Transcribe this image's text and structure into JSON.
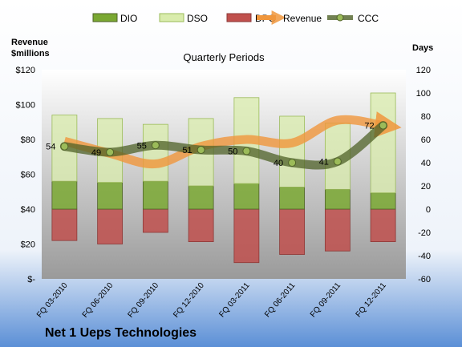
{
  "company": "Net 1 Ueps Technologies",
  "chart_data": {
    "type": "bar",
    "title": "Quarterly Periods",
    "left_axis_label_line1": "Revenue",
    "left_axis_label_line2": "$millions",
    "right_axis_label": "Days",
    "categories": [
      "FQ 03-2010",
      "FQ 06-2010",
      "FQ 09-2010",
      "FQ 12-2010",
      "FQ 03-2011",
      "FQ 06-2011",
      "FQ 09-2011",
      "FQ 12-2011"
    ],
    "left_axis": {
      "min": 0,
      "max": 120,
      "step": 20,
      "tick_labels": [
        "$-",
        "$20",
        "$40",
        "$60",
        "$80",
        "$100",
        "$120"
      ]
    },
    "right_axis": {
      "min": -60,
      "max": 120,
      "step": 20,
      "tick_labels": [
        "-60",
        "-40",
        "-20",
        "0",
        "20",
        "40",
        "60",
        "80",
        "100",
        "120"
      ]
    },
    "series": [
      {
        "name": "DIO",
        "axis": "days",
        "kind": "stacked-bar",
        "values": [
          24,
          23,
          24,
          20,
          22,
          19,
          17,
          14
        ],
        "color": "#7aa832"
      },
      {
        "name": "DSO",
        "axis": "days",
        "kind": "stacked-bar",
        "values": [
          57,
          55,
          49,
          58,
          74,
          61,
          57,
          86
        ],
        "color": "#d9ecac"
      },
      {
        "name": "DPO",
        "axis": "days",
        "kind": "negative-bar",
        "values": [
          -27,
          -30,
          -20,
          -28,
          -46,
          -39,
          -36,
          -28
        ],
        "color": "#c0504d"
      },
      {
        "name": "Revenue",
        "axis": "revenue",
        "kind": "line",
        "values": [
          79,
          72,
          66,
          76,
          80,
          78,
          91,
          88
        ],
        "color": "#f0963c"
      },
      {
        "name": "CCC",
        "axis": "days",
        "kind": "line",
        "values": [
          54,
          49,
          55,
          51,
          50,
          40,
          41,
          72
        ],
        "color": "#4f6228"
      }
    ],
    "ccc_labels": [
      "54",
      "49",
      "55",
      "51",
      "50",
      "40",
      "41",
      "72"
    ],
    "legend": {
      "position": "top",
      "items": [
        "DIO",
        "DSO",
        "DPO",
        "Revenue",
        "CCC"
      ]
    },
    "grid": false
  }
}
